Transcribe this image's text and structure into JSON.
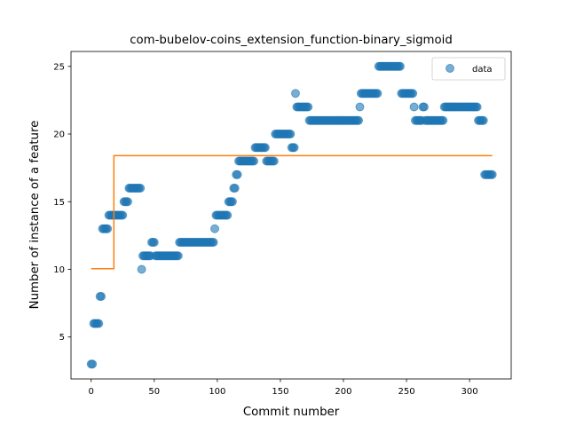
{
  "chart_data": {
    "type": "scatter",
    "title": "com-bubelov-coins_extension_function-binary_sigmoid",
    "xlabel": "Commit number",
    "ylabel": "Number of instance of a feature",
    "xlim": [
      -16,
      333
    ],
    "ylim": [
      1.9,
      26.1
    ],
    "xticks": [
      0,
      50,
      100,
      150,
      200,
      250,
      300
    ],
    "yticks": [
      5,
      10,
      15,
      20,
      25
    ],
    "grid": false,
    "legend": {
      "placement": "top-right",
      "entries": [
        "data"
      ]
    },
    "colors": {
      "scatter": "#1f77b4",
      "fit": "#ff7f0e"
    },
    "series": [
      {
        "name": "data",
        "kind": "scatter",
        "segments": [
          [
            0,
            1,
            3
          ],
          [
            2,
            6,
            6
          ],
          [
            7,
            8,
            8
          ],
          [
            9,
            13,
            13
          ],
          [
            14,
            25,
            14
          ],
          [
            26,
            29,
            15
          ],
          [
            30,
            39,
            16
          ],
          [
            40,
            40,
            10
          ],
          [
            41,
            47,
            11
          ],
          [
            48,
            50,
            12
          ],
          [
            51,
            69,
            11
          ],
          [
            70,
            97,
            12
          ],
          [
            98,
            98,
            13
          ],
          [
            99,
            108,
            14
          ],
          [
            109,
            112,
            15
          ],
          [
            113,
            114,
            16
          ],
          [
            115,
            116,
            17
          ],
          [
            117,
            129,
            18
          ],
          [
            130,
            138,
            19
          ],
          [
            139,
            145,
            18
          ],
          [
            146,
            158,
            20
          ],
          [
            159,
            161,
            19
          ],
          [
            162,
            162,
            23
          ],
          [
            163,
            172,
            22
          ],
          [
            173,
            212,
            21
          ],
          [
            213,
            213,
            22
          ],
          [
            214,
            227,
            23
          ],
          [
            228,
            245,
            25
          ],
          [
            246,
            255,
            23
          ],
          [
            256,
            256,
            22
          ],
          [
            257,
            262,
            21
          ],
          [
            263,
            264,
            22
          ],
          [
            265,
            279,
            21
          ],
          [
            280,
            306,
            22
          ],
          [
            307,
            311,
            21
          ],
          [
            312,
            318,
            17
          ]
        ]
      },
      {
        "name": "",
        "kind": "line",
        "x": [
          0,
          18,
          18,
          318
        ],
        "y": [
          10.05,
          10.05,
          18.4,
          18.4
        ]
      }
    ]
  }
}
